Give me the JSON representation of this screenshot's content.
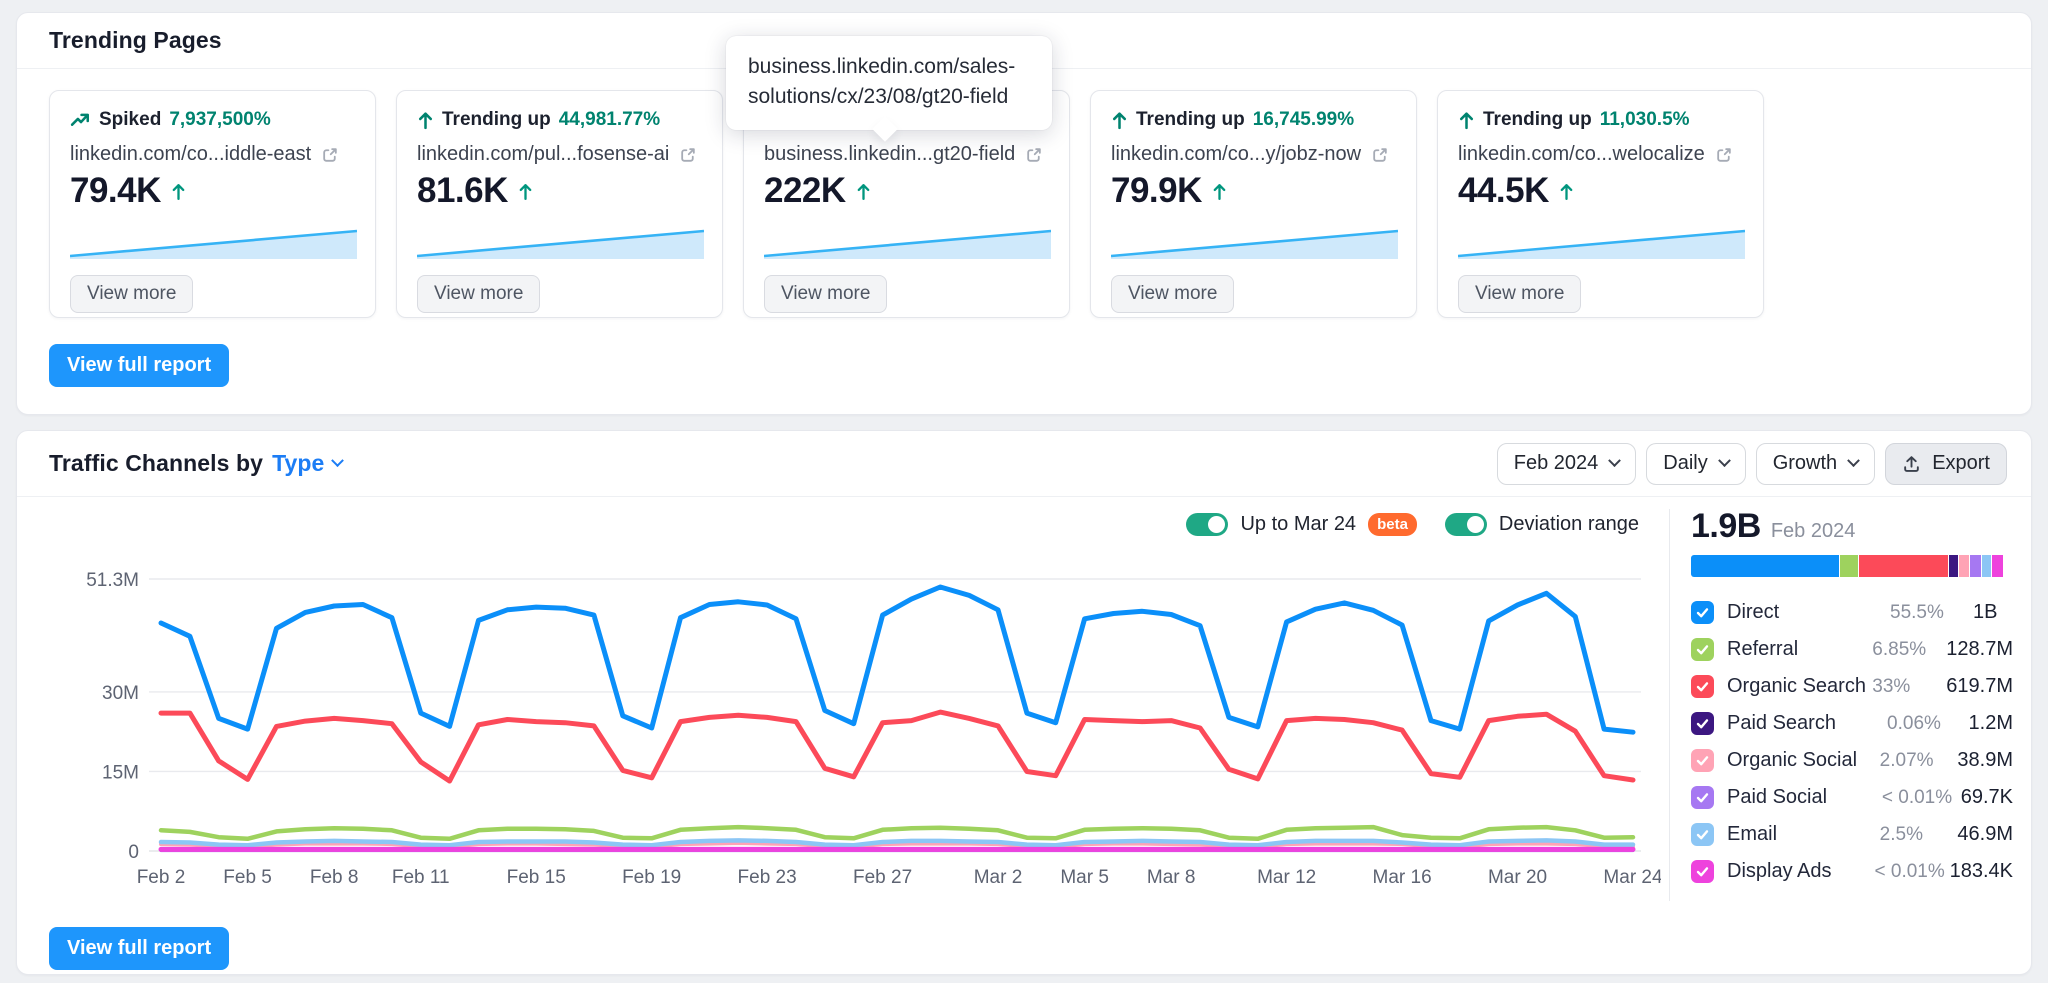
{
  "trending_pages": {
    "title": "Trending Pages",
    "view_full_report": "View full report",
    "tooltip": {
      "line1": "business.linkedin.com/sales-",
      "line2": "solutions/cx/23/08/gt20-field"
    },
    "cards": [
      {
        "badge_label": "Spiked",
        "badge_value": "7,937,500%",
        "url": "linkedin.com/co...iddle-east",
        "metric": "79.4K",
        "view_more": "View more"
      },
      {
        "badge_label": "Trending up",
        "badge_value": "44,981.77%",
        "url": "linkedin.com/pul...fosense-ai",
        "metric": "81.6K",
        "view_more": "View more"
      },
      {
        "badge_label": "",
        "badge_value": "",
        "url": "business.linkedin...gt20-field",
        "metric": "222K",
        "view_more": "View more"
      },
      {
        "badge_label": "Trending up",
        "badge_value": "16,745.99%",
        "url": "linkedin.com/co...y/jobz-now",
        "metric": "79.9K",
        "view_more": "View more"
      },
      {
        "badge_label": "Trending up",
        "badge_value": "11,030.5%",
        "url": "linkedin.com/co...welocalize",
        "metric": "44.5K",
        "view_more": "View more"
      }
    ]
  },
  "traffic_channels": {
    "title_prefix": "Traffic Channels by",
    "title_dimension": "Type",
    "controls": {
      "period": "Feb 2024",
      "granularity": "Daily",
      "metric": "Growth",
      "export_label": "Export"
    },
    "toggles": [
      {
        "label": "Up to Mar 24",
        "badge": "beta",
        "state": "on"
      },
      {
        "label": "Deviation range",
        "state": "on"
      }
    ],
    "summary": {
      "total": "1.9B",
      "period": "Feb 2024"
    },
    "legend": {
      "rows": [
        {
          "label": "Direct",
          "pct": "55.5%",
          "value": "1B",
          "color": "#0b8ff9",
          "bar_pct": 46.0
        },
        {
          "label": "Referral",
          "pct": "6.85%",
          "value": "128.7M",
          "color": "#9ed25e",
          "bar_pct": 5.6
        },
        {
          "label": "Organic Search",
          "pct": "33%",
          "value": "619.7M",
          "color": "#fc4a59",
          "bar_pct": 27.6
        },
        {
          "label": "Paid Search",
          "pct": "0.06%",
          "value": "1.2M",
          "color": "#3c1781",
          "bar_pct": 2.9
        },
        {
          "label": "Organic Social",
          "pct": "2.07%",
          "value": "38.9M",
          "color": "#ffa3b5",
          "bar_pct": 3.0
        },
        {
          "label": "Paid Social",
          "pct": "< 0.01%",
          "value": "69.7K",
          "color": "#a678f2",
          "bar_pct": 3.3
        },
        {
          "label": "Email",
          "pct": "2.5%",
          "value": "46.9M",
          "color": "#8cc6f5",
          "bar_pct": 3.0
        },
        {
          "label": "Display Ads",
          "pct": "< 0.01%",
          "value": "183.4K",
          "color": "#ee42dd",
          "bar_pct": 3.3
        }
      ]
    },
    "view_full_report": "View full report"
  },
  "chart_data": {
    "type": "line",
    "title": "Traffic Channels by Type, daily visits",
    "xlabel": "",
    "ylabel": "",
    "unit": "millions of visits per day",
    "x_days": 52,
    "x_start": "Feb 2",
    "x_end": "Mar 24",
    "ylim": [
      0,
      51.3
    ],
    "grid": true,
    "legend_position": "right",
    "yticks": [
      {
        "v": 51.3,
        "label": "51.3M"
      },
      {
        "v": 30,
        "label": "30M"
      },
      {
        "v": 15,
        "label": "15M"
      },
      {
        "v": 0,
        "label": "0"
      }
    ],
    "xticks": [
      {
        "day": 0,
        "label": "Feb 2"
      },
      {
        "day": 3,
        "label": "Feb 5"
      },
      {
        "day": 6,
        "label": "Feb 8"
      },
      {
        "day": 9,
        "label": "Feb 11"
      },
      {
        "day": 13,
        "label": "Feb 15"
      },
      {
        "day": 17,
        "label": "Feb 19"
      },
      {
        "day": 21,
        "label": "Feb 23"
      },
      {
        "day": 25,
        "label": "Feb 27"
      },
      {
        "day": 29,
        "label": "Mar 2"
      },
      {
        "day": 32,
        "label": "Mar 5"
      },
      {
        "day": 35,
        "label": "Mar 8"
      },
      {
        "day": 39,
        "label": "Mar 12"
      },
      {
        "day": 43,
        "label": "Mar 16"
      },
      {
        "day": 47,
        "label": "Mar 20"
      },
      {
        "day": 51,
        "label": "Mar 24"
      }
    ],
    "series": [
      {
        "name": "Paid Search",
        "color": "#3c1781",
        "stroke": 2.5,
        "flat": 0.05
      },
      {
        "name": "Paid Social",
        "color": "#a678f2",
        "stroke": 2.5,
        "flat": 0.02
      },
      {
        "name": "Organic Social",
        "color": "#ffa3b5",
        "stroke": 4,
        "values": [
          1.3,
          1.2,
          0.9,
          0.8,
          1.2,
          1.4,
          1.4,
          1.4,
          1.3,
          0.9,
          0.8,
          1.3,
          1.4,
          1.4,
          1.3,
          1.2,
          0.9,
          0.8,
          1.3,
          1.4,
          1.5,
          1.4,
          1.3,
          0.9,
          0.8,
          1.3,
          1.4,
          1.4,
          1.4,
          1.3,
          0.9,
          0.8,
          1.3,
          1.4,
          1.4,
          1.3,
          1.2,
          0.9,
          0.8,
          1.3,
          1.4,
          1.4,
          1.4,
          1.3,
          0.9,
          0.8,
          1.3,
          1.4,
          1.4,
          1.3,
          0.9,
          0.8
        ]
      },
      {
        "name": "Email",
        "color": "#8cc6f5",
        "stroke": 4.5,
        "values": [
          1.7,
          1.6,
          1.2,
          1.1,
          1.6,
          1.8,
          1.9,
          1.8,
          1.7,
          1.2,
          1.1,
          1.7,
          1.8,
          1.8,
          1.8,
          1.6,
          1.2,
          1.1,
          1.7,
          1.9,
          2,
          1.9,
          1.7,
          1.2,
          1.1,
          1.7,
          1.9,
          1.9,
          1.8,
          1.7,
          1.2,
          1.1,
          1.7,
          1.8,
          1.9,
          1.8,
          1.7,
          1.2,
          1.1,
          1.7,
          1.9,
          1.9,
          1.9,
          1.6,
          1.2,
          1.1,
          1.8,
          1.9,
          2,
          1.8,
          1.2,
          1.2
        ]
      },
      {
        "name": "Display Ads",
        "color": "#ee42dd",
        "stroke": 5,
        "flat": 0.3
      },
      {
        "name": "Referral",
        "color": "#9ed25e",
        "stroke": 4.5,
        "values": [
          3.9,
          3.6,
          2.6,
          2.3,
          3.7,
          4.1,
          4.3,
          4.2,
          3.9,
          2.5,
          2.3,
          3.9,
          4.2,
          4.2,
          4.1,
          3.8,
          2.5,
          2.4,
          4,
          4.3,
          4.5,
          4.3,
          4,
          2.6,
          2.4,
          4,
          4.3,
          4.4,
          4.2,
          3.9,
          2.5,
          2.4,
          4,
          4.2,
          4.3,
          4.2,
          3.9,
          2.5,
          2.3,
          4,
          4.3,
          4.4,
          4.5,
          3,
          2.5,
          2.4,
          4.1,
          4.4,
          4.5,
          3.9,
          2.5,
          2.6
        ]
      },
      {
        "name": "Organic Search",
        "color": "#fc4a59",
        "stroke": 5,
        "values": [
          26,
          26,
          17,
          13.5,
          23.5,
          24.5,
          25,
          24.6,
          24,
          16.8,
          13.2,
          23.8,
          24.8,
          24.4,
          24.2,
          23.6,
          15.2,
          13.8,
          24.4,
          25.2,
          25.6,
          25.2,
          24.4,
          15.6,
          14,
          24.2,
          24.6,
          26.2,
          25,
          23.6,
          15,
          14.2,
          24.8,
          24.6,
          24.4,
          24.6,
          23.2,
          15.4,
          13.6,
          24.6,
          25,
          24.8,
          24.2,
          22.8,
          14.6,
          13.9,
          24.6,
          25.4,
          25.8,
          22.6,
          14.2,
          13.4
        ]
      },
      {
        "name": "Direct",
        "color": "#0b8ff9",
        "stroke": 5,
        "values": [
          43,
          40.5,
          25,
          23,
          42,
          45,
          46.2,
          46.5,
          44,
          26,
          23.5,
          43.5,
          45.5,
          46,
          45.8,
          44.5,
          25.5,
          23.2,
          44,
          46.5,
          47,
          46.4,
          43.8,
          26.5,
          24,
          44.5,
          47.5,
          49.8,
          48.2,
          45.5,
          26,
          24.2,
          43.8,
          44.8,
          45.2,
          44.6,
          42.5,
          25.2,
          23.4,
          43.2,
          45.6,
          46.8,
          45.4,
          42.6,
          24.6,
          23,
          43.4,
          46.4,
          48.6,
          44.2,
          23,
          22.4
        ]
      }
    ]
  }
}
